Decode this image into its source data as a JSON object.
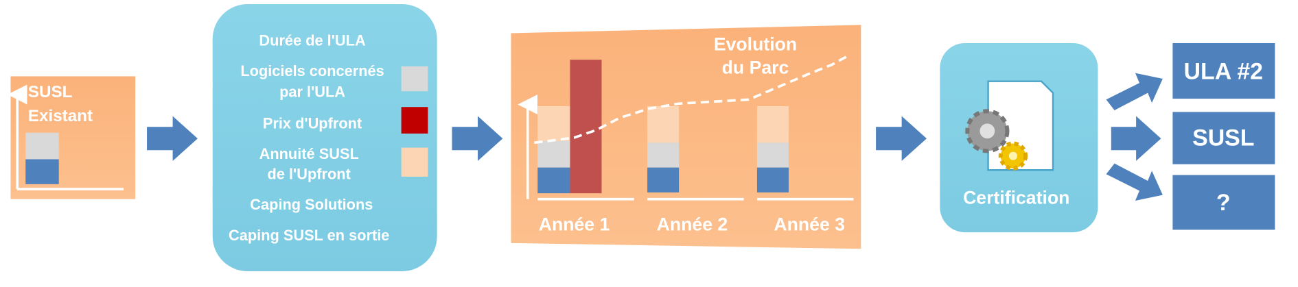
{
  "step_existing": {
    "title_lines": [
      "SUSL",
      "Existant"
    ]
  },
  "step_parameters": {
    "items": [
      {
        "lines": [
          "Durée de l'ULA"
        ]
      },
      {
        "lines": [
          "Logiciels concernés",
          "par l'ULA"
        ]
      },
      {
        "lines": [
          "Prix d'Upfront"
        ]
      },
      {
        "lines": [
          "Annuité SUSL",
          "de l'Upfront"
        ]
      },
      {
        "lines": [
          "Caping Solutions"
        ]
      },
      {
        "lines": [
          "Caping SUSL en sortie"
        ]
      }
    ]
  },
  "step_projection": {
    "annotation_lines": [
      "Evolution",
      "du Parc"
    ],
    "years": [
      "Année 1",
      "Année 2",
      "Année 3"
    ]
  },
  "step_certification": {
    "label": "Certification"
  },
  "outcomes": [
    "ULA #2",
    "SUSL",
    "?"
  ]
}
